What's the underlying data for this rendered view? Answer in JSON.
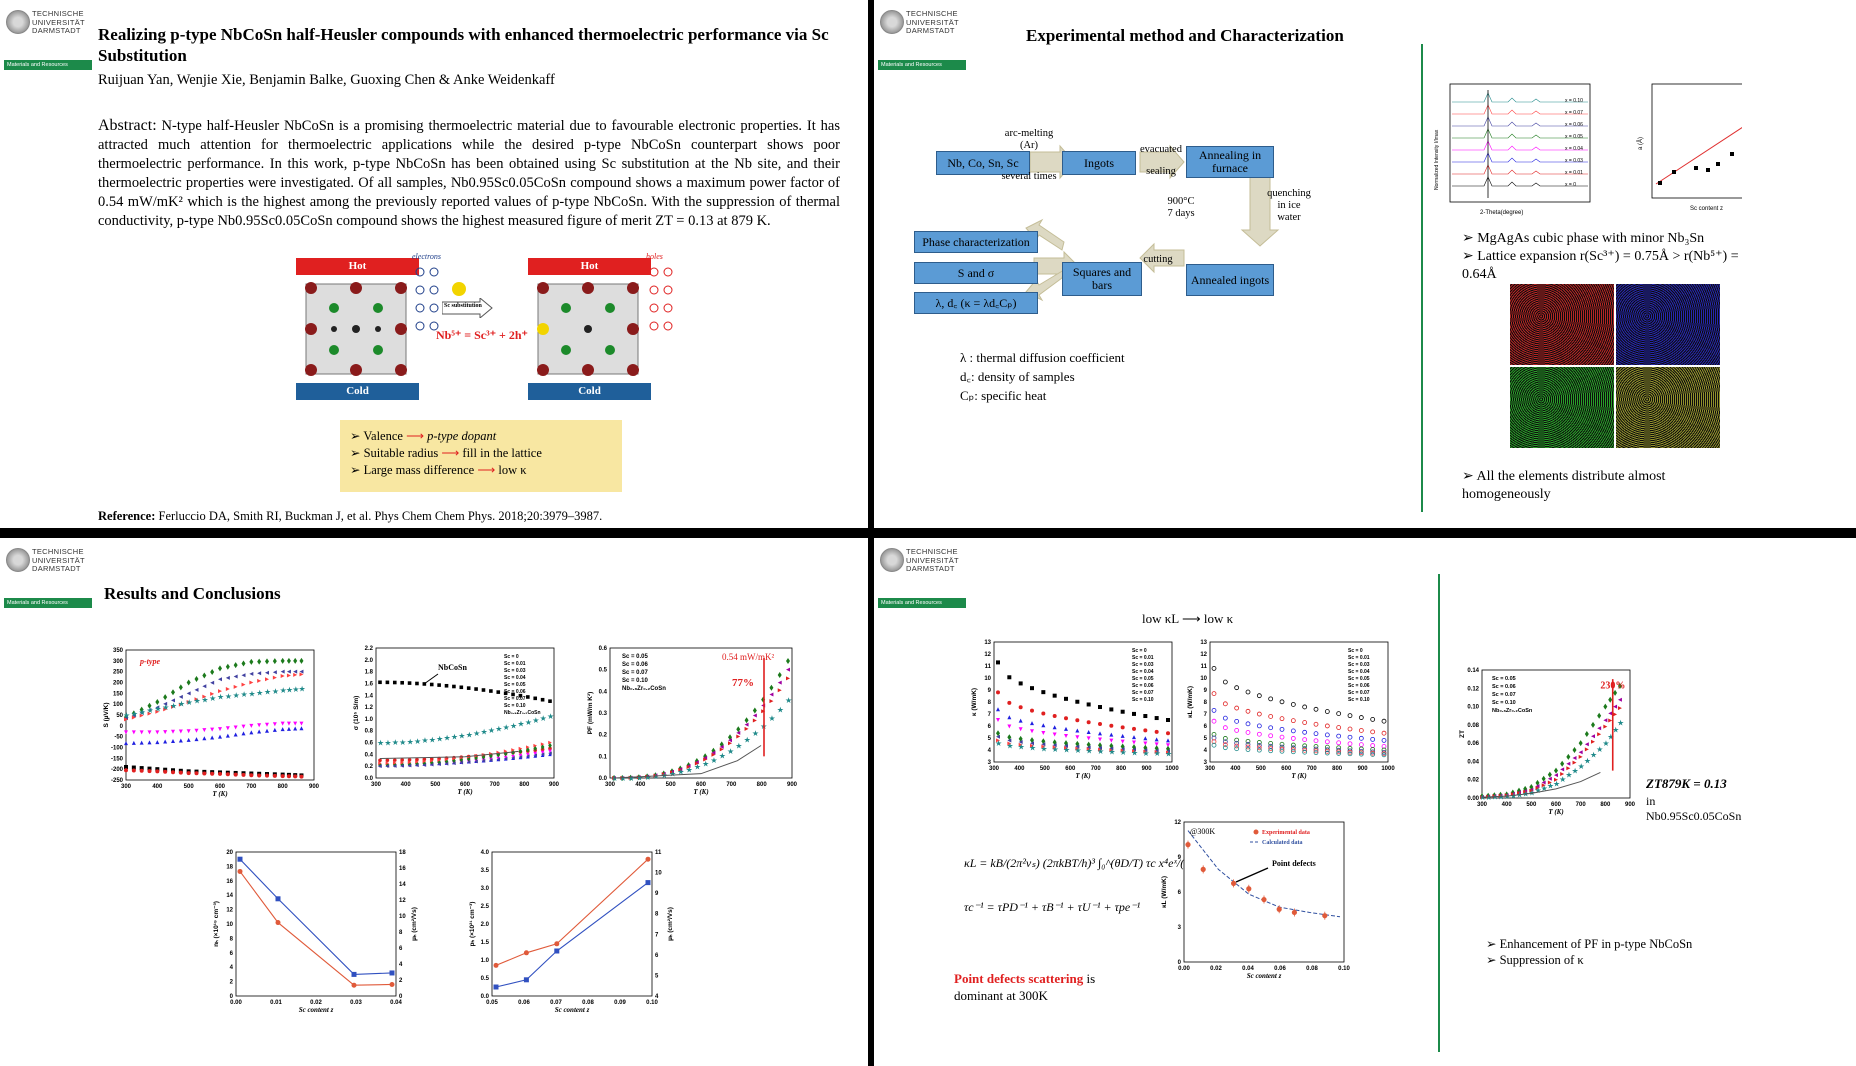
{
  "logo": {
    "lines": [
      "TECHNISCHE",
      "UNIVERSITÄT",
      "DARMSTADT"
    ],
    "bar": "Materials and Resources"
  },
  "slide1": {
    "title": "Realizing p-type NbCoSn half-Heusler compounds with enhanced thermoelectric performance via Sc Substitution",
    "authors": "Ruijuan Yan, Wenjie Xie, Benjamin Balke, Guoxing Chen & Anke Weidenkaff",
    "abstract_label": "Abstract:",
    "abstract": "N-type half-Heusler NbCoSn is a promising thermoelectric material due to favourable electronic properties. It has attracted much attention for thermoelectric applications while the desired p-type NbCoSn counterpart shows poor thermoelectric performance. In this work, p-type NbCoSn has been obtained using Sc substitution at the Nb site, and their thermoelectric properties were investigated. Of all samples, Nb0.95Sc0.05CoSn compound shows a maximum power factor of 0.54 mW/mK² which is the highest among the previously reported values of p-type NbCoSn. With the suppression of thermal conductivity, p-type Nb0.95Sc0.05CoSn compound shows the highest measured figure of merit ZT = 0.13 at 879 K.",
    "hot": "Hot",
    "cold": "Cold",
    "electrons": "electrons",
    "holes": "holes",
    "sc_sub": "Sc substitution",
    "equation": "Nb⁵⁺ = Sc³⁺ + 2h⁺",
    "yellow_items": [
      {
        "a": "Valence",
        "b": "p-type dopant"
      },
      {
        "a": "Suitable radius",
        "b": "fill in the lattice"
      },
      {
        "a": "Large mass difference",
        "b": "low κ"
      }
    ],
    "reference_label": "Reference:",
    "reference": "Ferluccio DA, Smith RI, Buckman J, et al. Phys Chem Chem Phys. 2018;20:3979–3987."
  },
  "slide2": {
    "title": "Experimental method and Characterization",
    "boxes": {
      "start": "Nb, Co, Sn, Sc",
      "ingots": "Ingots",
      "annealing": "Annealing in furnace",
      "annealed": "Annealed ingots",
      "squares": "Squares and bars",
      "phase": "Phase characterization",
      "s_sigma": "S and σ",
      "lambda": "λ, d꜀ (κ = λd꜀Cₚ)"
    },
    "labels": {
      "arc": "arc-melting (Ar)",
      "several": "several times",
      "evacuated": "evacuated",
      "sealing": "sealing",
      "temp": "900°C 7 days",
      "quench": "quenching in ice water",
      "cutting": "cutting"
    },
    "legend": [
      "λ : thermal diffusion coefficient",
      "d꜀: density of samples",
      "Cₚ: specific heat"
    ],
    "bullets": [
      "MgAgAs cubic phase with minor Nb₃Sn",
      "Lattice expansion r(Sc³⁺) = 0.75Å > r(Nb⁵⁺) = 0.64Å",
      "All the elements distribute almost homogeneously"
    ],
    "xrd_xlabel": "2-Theta(degree)",
    "xrd_ylabel": "Normalized Intensity I/Imax",
    "xrd_legend": [
      "x = 0.10",
      "x = 0.07",
      "x = 0.06",
      "x = 0.05",
      "x = 0.04",
      "x = 0.03",
      "x = 0.01",
      "x = 0"
    ],
    "lat_xlabel": "Sc content z",
    "lat_ylabel": "a (Å)",
    "eds_colors": [
      "#b01818",
      "#1a1aa8",
      "#1c9a1c",
      "#8a8a20"
    ]
  },
  "slide3": {
    "title": "Results and Conclusions",
    "colors": {
      "s0": "#000000",
      "s1": "#e02020",
      "s3": "#2020e0",
      "s4": "#a000a0",
      "s5": "#1c7a1c",
      "s6": "#ff00ff",
      "s7": "#ff4040",
      "s10": "#208a8a",
      "ref": "#555555"
    },
    "seebeck": {
      "ylabel": "S (µV/K)",
      "xlabel": "T (K)",
      "tag": "p-type",
      "yticks": [
        "350",
        "300",
        "250",
        "200",
        "150",
        "100",
        "50",
        "0",
        "-50",
        "-100",
        "-150",
        "-200",
        "-250"
      ],
      "xticks": [
        "300",
        "400",
        "500",
        "600",
        "700",
        "800",
        "900"
      ]
    },
    "sigma": {
      "ylabel": "σ (10⁵ S/m)",
      "xlabel": "T (K)",
      "tag": "NbCoSn",
      "yticks": [
        "2.2",
        "2.0",
        "1.8",
        "1.6",
        "1.4",
        "1.2",
        "1.0",
        "0.8",
        "0.6",
        "0.4",
        "0.2",
        "0.0"
      ],
      "xticks": [
        "300",
        "400",
        "500",
        "600",
        "700",
        "800",
        "900"
      ],
      "legend": [
        "Sc = 0",
        "Sc = 0.01",
        "Sc = 0.03",
        "Sc = 0.04",
        "Sc = 0.05",
        "Sc = 0.06",
        "Sc = 0.07",
        "Sc = 0.10",
        "Nb₀.₈Zr₀.₂CoSn"
      ]
    },
    "pf": {
      "ylabel": "PF (mW/m K²)",
      "xlabel": "T (K)",
      "note": "0.54 mW/mK²",
      "pct": "77%",
      "yticks": [
        "0.6",
        "0.5",
        "0.4",
        "0.3",
        "0.2",
        "0.1",
        "0.0"
      ],
      "xticks": [
        "300",
        "400",
        "500",
        "600",
        "700",
        "800",
        "900"
      ],
      "legend": [
        "Sc = 0.05",
        "Sc = 0.06",
        "Sc = 0.07",
        "Sc = 0.10",
        "Nb₀.₈Zr₀.₂CoSn"
      ]
    },
    "carrier": {
      "xlabel": "Sc content z",
      "ylabel_left": "nₕ (×10¹⁹ cm⁻³)",
      "ylabel_right": "µₕ (cm²/Vs)",
      "xticks": [
        "0.00",
        "0.01",
        "0.02",
        "0.03",
        "0.04"
      ],
      "yticks_left": [
        "20",
        "18",
        "16",
        "14",
        "12",
        "10",
        "8",
        "6",
        "4",
        "2",
        "0"
      ],
      "yticks_right": [
        "18",
        "16",
        "14",
        "12",
        "10",
        "8",
        "6",
        "4",
        "2",
        "0"
      ]
    },
    "carrier2": {
      "xlabel": "Sc content z",
      "ylabel_left": "pₕ (×10²¹ cm⁻³)",
      "ylabel_right": "µₕ (cm²/Vs)",
      "xticks": [
        "0.05",
        "0.06",
        "0.07",
        "0.08",
        "0.09",
        "0.10"
      ],
      "yticks_left": [
        "4.0",
        "3.5",
        "3.0",
        "2.5",
        "2.0",
        "1.5",
        "1.0",
        "0.5",
        "0.0"
      ],
      "yticks_right": [
        "11",
        "10",
        "9",
        "8",
        "7",
        "6",
        "5",
        "4"
      ]
    }
  },
  "slide4": {
    "header": "low κL ⟶ low κ",
    "kappa": {
      "ylabel": "κ (W/mK)",
      "xlabel": "T (K)",
      "yticks": [
        "13",
        "12",
        "11",
        "10",
        "9",
        "8",
        "7",
        "6",
        "5",
        "4",
        "3"
      ],
      "xticks": [
        "300",
        "400",
        "500",
        "600",
        "700",
        "800",
        "900",
        "1000"
      ],
      "legend": [
        "Sc = 0",
        "Sc = 0.01",
        "Sc = 0.03",
        "Sc = 0.04",
        "Sc = 0.05",
        "Sc = 0.06",
        "Sc = 0.07",
        "Sc = 0.10"
      ]
    },
    "kappaL": {
      "ylabel": "κL (W/mK)",
      "xlabel": "T (K)",
      "yticks": [
        "13",
        "12",
        "11",
        "10",
        "9",
        "8",
        "7",
        "6",
        "5",
        "4",
        "3"
      ],
      "xticks": [
        "300",
        "400",
        "500",
        "600",
        "700",
        "800",
        "900",
        "1000"
      ],
      "legend": [
        "Sc = 0",
        "Sc = 0.01",
        "Sc = 0.03",
        "Sc = 0.04",
        "Sc = 0.05",
        "Sc = 0.06",
        "Sc = 0.07",
        "Sc = 0.10"
      ]
    },
    "formula1": "κL = kB/(2π²vₛ) (2πkBT/h)³ ∫₀^(θD/T) τc x⁴eˣ/(eˣ−1)² dx",
    "formula2": "τc⁻¹ = τPD⁻¹ + τB⁻¹ + τU⁻¹ + τpe⁻¹",
    "pd_red": "Point defects scattering",
    "pd_black": "is",
    "pd_line2": "dominant at 300K",
    "kl300": {
      "at": "@300K",
      "legend": [
        "Experimental data",
        "Calculated data"
      ],
      "arrow": "Point defects",
      "ylabel": "κL (W/mK)",
      "xlabel": "Sc content z",
      "yticks": [
        "12",
        "9",
        "6",
        "3",
        "0"
      ],
      "xticks": [
        "0.00",
        "0.02",
        "0.04",
        "0.06",
        "0.08",
        "0.10"
      ]
    },
    "zt": {
      "ylabel": "ZT",
      "xlabel": "T (K)",
      "pct": "230%",
      "yticks": [
        "0.14",
        "0.12",
        "0.10",
        "0.08",
        "0.06",
        "0.04",
        "0.02",
        "0.00"
      ],
      "xticks": [
        "300",
        "400",
        "500",
        "600",
        "700",
        "800",
        "900"
      ],
      "legend": [
        "Sc = 0.05",
        "Sc = 0.06",
        "Sc = 0.07",
        "Sc = 0.10",
        "Nb₀.₈Zr₀.₂CoSn"
      ]
    },
    "zt_note": "ZT879K = 0.13",
    "zt_note2": "in Nb0.95Sc0.05CoSn",
    "bullets": [
      "Enhancement of PF in p-type NbCoSn",
      "Suppression of κ"
    ]
  },
  "chart_data": [
    {
      "type": "scatter",
      "title": "",
      "xlabel": "T (K)",
      "ylabel": "S (µV/K)",
      "xlim": [
        300,
        900
      ],
      "ylim": [
        -250,
        350
      ],
      "series": [
        {
          "name": "",
          "x": [
            300,
            400,
            500,
            600,
            700,
            800,
            880
          ],
          "values": [
            -190,
            -200,
            -210,
            -215,
            -220,
            -225,
            -230
          ]
        },
        {
          "name": "",
          "x": [
            300,
            400,
            500,
            600,
            700,
            800,
            880
          ],
          "values": [
            -205,
            -210,
            -218,
            -222,
            -228,
            -232,
            -235
          ]
        },
        {
          "name": "",
          "x": [
            300,
            400,
            500,
            600,
            700,
            800,
            880
          ],
          "values": [
            -80,
            -75,
            -65,
            -50,
            -30,
            -15,
            -10
          ]
        },
        {
          "name": "",
          "x": [
            300,
            400,
            500,
            600,
            700,
            800,
            880
          ],
          "values": [
            -30,
            -30,
            -25,
            -15,
            0,
            10,
            10
          ]
        },
        {
          "name": "",
          "x": [
            300,
            400,
            500,
            600,
            700,
            800,
            880
          ],
          "values": [
            40,
            110,
            200,
            265,
            295,
            300,
            300
          ]
        },
        {
          "name": "",
          "x": [
            300,
            400,
            500,
            600,
            700,
            800,
            880
          ],
          "values": [
            35,
            85,
            150,
            215,
            240,
            250,
            250
          ]
        },
        {
          "name": "",
          "x": [
            300,
            400,
            500,
            600,
            700,
            800,
            880
          ],
          "values": [
            30,
            65,
            110,
            160,
            200,
            230,
            240
          ]
        },
        {
          "name": "",
          "x": [
            300,
            400,
            500,
            600,
            700,
            800,
            880
          ],
          "values": [
            50,
            80,
            110,
            135,
            150,
            165,
            175
          ]
        }
      ]
    },
    {
      "type": "line",
      "title": "",
      "xlabel": "Sc content z",
      "ylabel": "nₕ (×10¹⁹ cm⁻³)",
      "xlim": [
        0,
        0.04
      ],
      "ylim": [
        0,
        20
      ],
      "series": [
        {
          "name": "",
          "x": [
            0,
            0.01,
            0.03,
            0.04
          ],
          "values": [
            17.3,
            10.2,
            1.5,
            1.6
          ]
        },
        {
          "name": "",
          "x": [
            0,
            0.01,
            0.03,
            0.04
          ],
          "values": [
            19.0,
            13.5,
            3.0,
            3.2
          ]
        }
      ]
    },
    {
      "type": "line",
      "title": "",
      "xlabel": "Sc content z",
      "ylabel": "pₕ (×10²¹ cm⁻³)",
      "xlim": [
        0.05,
        0.1
      ],
      "ylim": [
        0,
        4
      ],
      "series": [
        {
          "name": "",
          "x": [
            0.05,
            0.06,
            0.07,
            0.1
          ],
          "values": [
            0.85,
            1.2,
            1.45,
            3.8
          ]
        },
        {
          "name": "",
          "x": [
            0.05,
            0.06,
            0.07,
            0.1
          ],
          "values": [
            0.25,
            0.45,
            1.25,
            3.15
          ]
        }
      ]
    },
    {
      "type": "scatter",
      "title": "",
      "xlabel": "Sc content z",
      "ylabel": "κL (W/mK)",
      "xlim": [
        0,
        0.1
      ],
      "ylim": [
        0,
        13
      ],
      "series": [
        {
          "name": "Experimental data",
          "x": [
            0,
            0.01,
            0.03,
            0.04,
            0.05,
            0.06,
            0.07,
            0.09
          ],
          "values": [
            10.9,
            8.6,
            7.3,
            6.8,
            5.8,
            4.9,
            4.6,
            4.3
          ]
        },
        {
          "name": "Calculated data",
          "x": [
            0,
            0.02,
            0.04,
            0.06,
            0.08,
            0.1
          ],
          "values": [
            12.2,
            8.6,
            6.3,
            5.1,
            4.6,
            4.2
          ]
        }
      ]
    },
    {
      "type": "scatter",
      "title": "",
      "xlabel": "T (K)",
      "ylabel": "ZT",
      "xlim": [
        300,
        900
      ],
      "ylim": [
        0,
        0.14
      ],
      "series": [
        {
          "name": "Sc = 0.05",
          "x": [
            300,
            400,
            500,
            600,
            700,
            800,
            879
          ],
          "values": [
            0.002,
            0.004,
            0.012,
            0.03,
            0.06,
            0.1,
            0.13
          ]
        },
        {
          "name": "Sc = 0.06",
          "x": [
            300,
            400,
            500,
            600,
            700,
            800,
            879
          ],
          "values": [
            0.001,
            0.003,
            0.009,
            0.025,
            0.05,
            0.085,
            0.115
          ]
        },
        {
          "name": "Sc = 0.07",
          "x": [
            300,
            400,
            500,
            600,
            700,
            800,
            879
          ],
          "values": [
            0.001,
            0.003,
            0.008,
            0.02,
            0.045,
            0.078,
            0.105
          ]
        },
        {
          "name": "Sc = 0.10",
          "x": [
            300,
            400,
            500,
            600,
            700,
            800,
            879
          ],
          "values": [
            0.001,
            0.002,
            0.006,
            0.016,
            0.035,
            0.06,
            0.09
          ]
        },
        {
          "name": "Nb₀.₈Zr₀.₂CoSn",
          "x": [
            300,
            400,
            500,
            600,
            700,
            780
          ],
          "values": [
            0.001,
            0.002,
            0.005,
            0.01,
            0.018,
            0.028
          ]
        }
      ]
    }
  ]
}
